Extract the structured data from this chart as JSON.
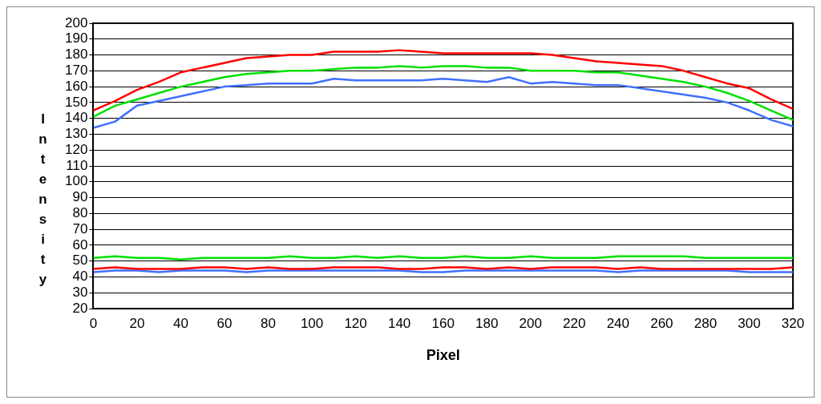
{
  "chart_data": {
    "type": "line",
    "xlabel": "Pixel",
    "ylabel": "Intensity",
    "x": [
      0,
      10,
      20,
      30,
      40,
      50,
      60,
      70,
      80,
      90,
      100,
      110,
      120,
      130,
      140,
      150,
      160,
      170,
      180,
      190,
      200,
      210,
      220,
      230,
      240,
      250,
      260,
      270,
      280,
      290,
      300,
      310,
      320
    ],
    "series": [
      {
        "color": "#ff0000",
        "values": [
          145,
          151,
          158,
          163,
          169,
          172,
          175,
          178,
          179,
          180,
          180,
          182,
          182,
          182,
          183,
          182,
          181,
          181,
          181,
          181,
          181,
          180,
          178,
          176,
          175,
          174,
          173,
          170,
          166,
          162,
          159,
          152,
          146
        ]
      },
      {
        "color": "#00e000",
        "values": [
          141,
          148,
          152,
          156,
          160,
          163,
          166,
          168,
          169,
          170,
          170,
          171,
          172,
          172,
          173,
          172,
          173,
          173,
          172,
          172,
          170,
          170,
          170,
          169,
          169,
          167,
          165,
          163,
          160,
          156,
          151,
          145,
          139
        ]
      },
      {
        "color": "#4070ff",
        "values": [
          134,
          138,
          148,
          151,
          154,
          157,
          160,
          161,
          162,
          162,
          162,
          165,
          164,
          164,
          164,
          164,
          165,
          164,
          163,
          166,
          162,
          163,
          162,
          161,
          161,
          159,
          157,
          155,
          153,
          150,
          145,
          139,
          135
        ]
      },
      {
        "color": "#00e000",
        "values": [
          52,
          53,
          52,
          52,
          51,
          52,
          52,
          52,
          52,
          53,
          52,
          52,
          53,
          52,
          53,
          52,
          52,
          53,
          52,
          52,
          53,
          52,
          52,
          52,
          53,
          53,
          53,
          53,
          52,
          52,
          52,
          52,
          52
        ]
      },
      {
        "color": "#ff0000",
        "values": [
          45,
          46,
          45,
          45,
          45,
          46,
          46,
          45,
          46,
          45,
          45,
          46,
          46,
          46,
          45,
          45,
          46,
          46,
          45,
          46,
          45,
          46,
          46,
          46,
          45,
          46,
          45,
          45,
          45,
          45,
          45,
          45,
          46
        ]
      },
      {
        "color": "#4070ff",
        "values": [
          43,
          44,
          44,
          43,
          44,
          44,
          44,
          43,
          44,
          44,
          44,
          44,
          44,
          44,
          44,
          43,
          43,
          44,
          44,
          44,
          44,
          44,
          44,
          44,
          43,
          44,
          44,
          44,
          44,
          44,
          43,
          43,
          43
        ]
      }
    ],
    "xlim": [
      0,
      320
    ],
    "xticks": [
      0,
      20,
      40,
      60,
      80,
      100,
      120,
      140,
      160,
      180,
      200,
      220,
      240,
      260,
      280,
      300,
      320
    ],
    "ylim": [
      20,
      200
    ],
    "yticks": [
      20,
      30,
      40,
      50,
      60,
      70,
      80,
      90,
      100,
      110,
      120,
      130,
      140,
      150,
      160,
      170,
      180,
      190,
      200
    ],
    "grid": "y",
    "legend": false,
    "marker": "none",
    "line_style": "solid"
  }
}
